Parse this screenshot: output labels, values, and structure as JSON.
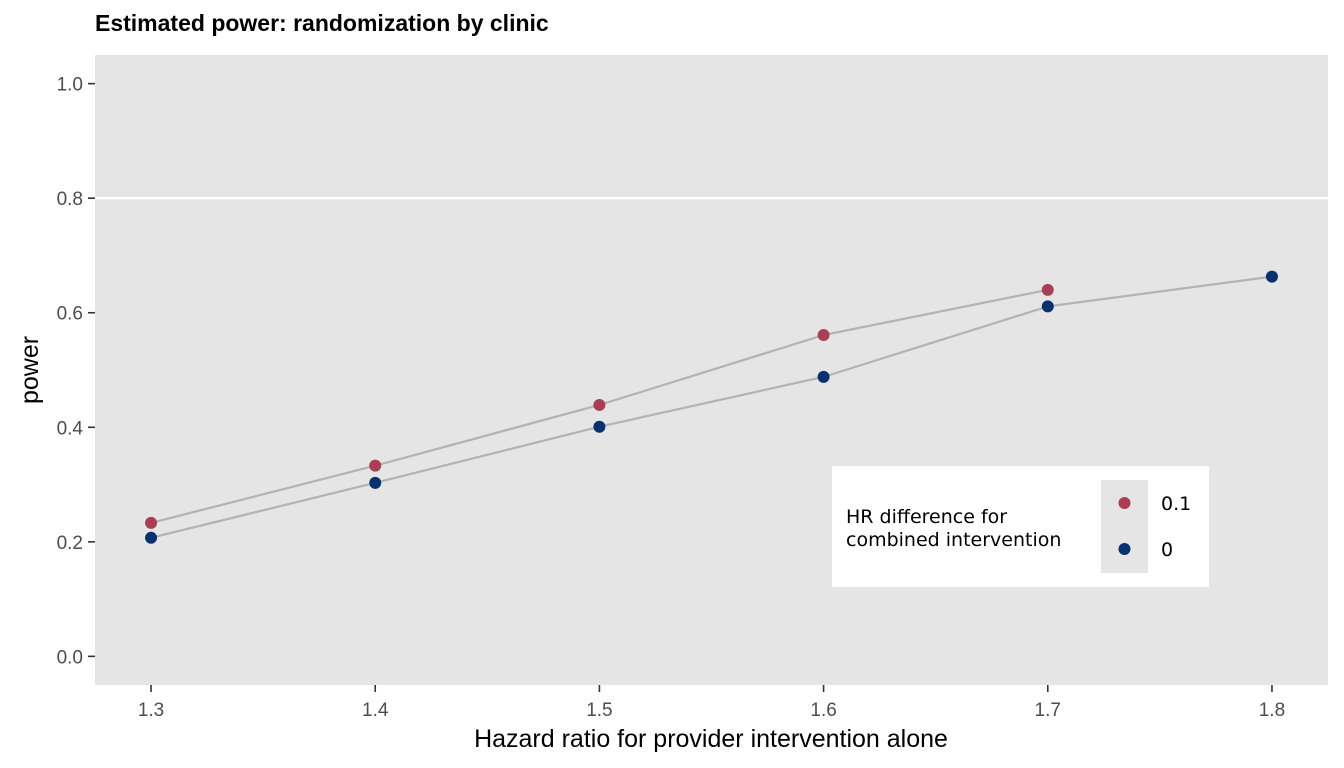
{
  "chart_data": {
    "type": "line",
    "title": "Estimated power: randomization by clinic",
    "xlabel": "Hazard ratio for provider intervention alone",
    "ylabel": "power",
    "xlim": [
      1.275,
      1.825
    ],
    "ylim": [
      -0.05,
      1.05
    ],
    "x_ticks": [
      1.3,
      1.4,
      1.5,
      1.6,
      1.7,
      1.8
    ],
    "x_tick_labels": [
      "1.3",
      "1.4",
      "1.5",
      "1.6",
      "1.7",
      "1.8"
    ],
    "y_ticks": [
      0.0,
      0.2,
      0.4,
      0.6,
      0.8,
      1.0
    ],
    "y_tick_labels": [
      "0.0",
      "0.2",
      "0.4",
      "0.6",
      "0.8",
      "1.0"
    ],
    "reference_line": {
      "y": 0.8,
      "color": "#ffffff"
    },
    "grid": false,
    "legend": {
      "title_lines": [
        "HR difference for",
        "combined intervention"
      ],
      "position": "bottom-right-inside"
    },
    "line_color": "#b3b3b3",
    "series": [
      {
        "name": "0.1",
        "color": "#aa3e55",
        "x": [
          1.3,
          1.4,
          1.5,
          1.6,
          1.7
        ],
        "y": [
          0.233,
          0.333,
          0.439,
          0.561,
          0.64
        ]
      },
      {
        "name": "0",
        "color": "#07306e",
        "x": [
          1.3,
          1.4,
          1.5,
          1.6,
          1.7,
          1.8
        ],
        "y": [
          0.207,
          0.303,
          0.401,
          0.488,
          0.611,
          0.663
        ]
      }
    ]
  }
}
